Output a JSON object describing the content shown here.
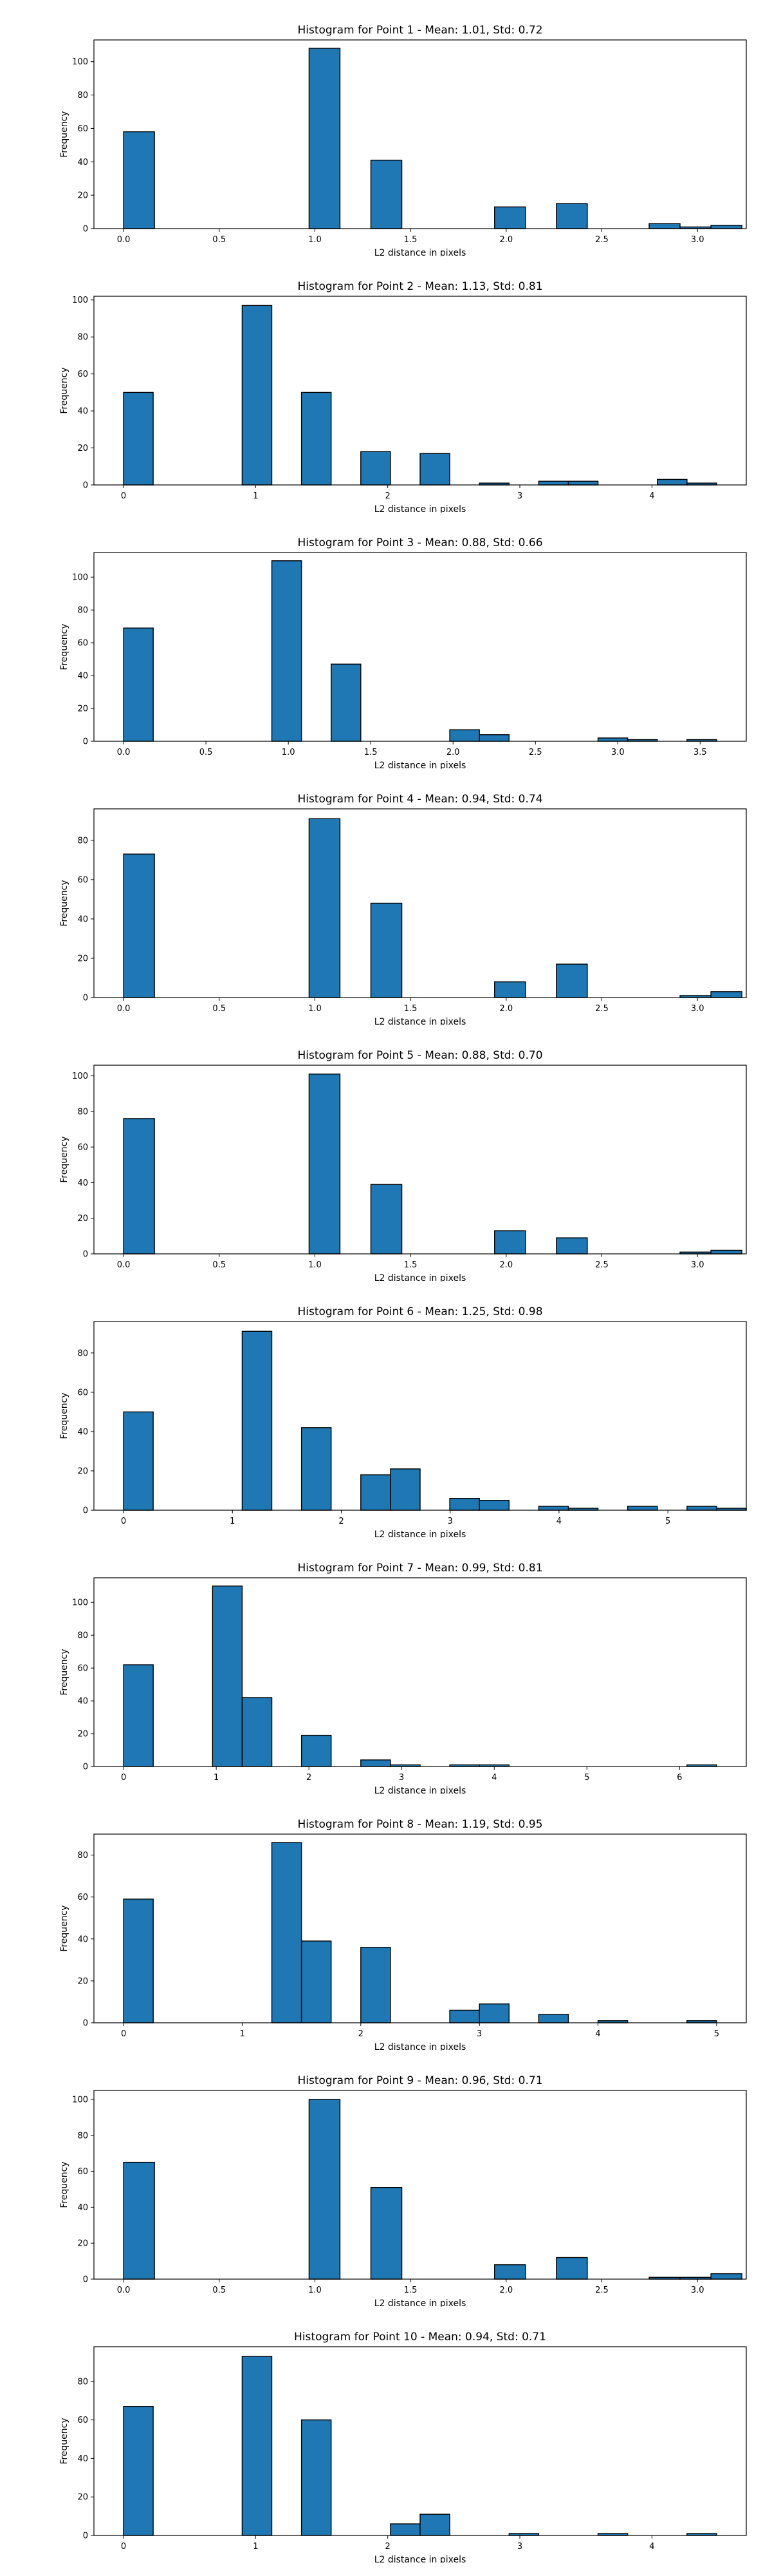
{
  "chart_data": [
    {
      "type": "bar",
      "title": "Histogram for Point 1 - Mean: 1.01, Std: 0.72",
      "xlabel": "L2 distance in pixels",
      "ylabel": "Frequency",
      "xlim": [
        -0.155,
        3.255
      ],
      "ylim": [
        0,
        113
      ],
      "xticks": [
        0.0,
        0.5,
        1.0,
        1.5,
        2.0,
        2.5,
        3.0
      ],
      "xtick_labels": [
        "0.0",
        "0.5",
        "1.0",
        "1.5",
        "2.0",
        "2.5",
        "3.0"
      ],
      "yticks": [
        0,
        20,
        40,
        60,
        80,
        100
      ],
      "bin_start": 0.0,
      "bin_width": 0.1616,
      "values": [
        58,
        0,
        0,
        0,
        0,
        0,
        108,
        0,
        41,
        0,
        0,
        0,
        13,
        0,
        15,
        0,
        0,
        3,
        1,
        2
      ]
    },
    {
      "type": "bar",
      "title": "Histogram for Point 2 - Mean: 1.13, Std: 0.81",
      "xlabel": "L2 distance in pixels",
      "ylabel": "Frequency",
      "xlim": [
        -0.224,
        4.714
      ],
      "ylim": [
        0,
        102
      ],
      "xticks": [
        0,
        1,
        2,
        3,
        4
      ],
      "xtick_labels": [
        "0",
        "1",
        "2",
        "3",
        "4"
      ],
      "yticks": [
        0,
        20,
        40,
        60,
        80,
        100
      ],
      "bin_start": 0.0,
      "bin_width": 0.2245,
      "values": [
        50,
        0,
        0,
        0,
        97,
        0,
        50,
        0,
        18,
        0,
        17,
        0,
        1,
        0,
        2,
        2,
        0,
        0,
        3,
        1
      ]
    },
    {
      "type": "bar",
      "title": "Histogram for Point 3 - Mean: 0.88, Std: 0.66",
      "xlabel": "L2 distance in pixels",
      "ylabel": "Frequency",
      "xlim": [
        -0.18,
        3.78
      ],
      "ylim": [
        0,
        115
      ],
      "xticks": [
        0.0,
        0.5,
        1.0,
        1.5,
        2.0,
        2.5,
        3.0,
        3.5
      ],
      "xtick_labels": [
        "0.0",
        "0.5",
        "1.0",
        "1.5",
        "2.0",
        "2.5",
        "3.0",
        "3.5"
      ],
      "yticks": [
        0,
        20,
        40,
        60,
        80,
        100
      ],
      "bin_start": 0.0,
      "bin_width": 0.18,
      "values": [
        69,
        0,
        0,
        0,
        0,
        110,
        0,
        47,
        0,
        0,
        0,
        7,
        4,
        0,
        0,
        0,
        2,
        1,
        0,
        1
      ]
    },
    {
      "type": "bar",
      "title": "Histogram for Point 4 - Mean: 0.94, Std: 0.74",
      "xlabel": "L2 distance in pixels",
      "ylabel": "Frequency",
      "xlim": [
        -0.155,
        3.255
      ],
      "ylim": [
        0,
        96
      ],
      "xticks": [
        0.0,
        0.5,
        1.0,
        1.5,
        2.0,
        2.5,
        3.0
      ],
      "xtick_labels": [
        "0.0",
        "0.5",
        "1.0",
        "1.5",
        "2.0",
        "2.5",
        "3.0"
      ],
      "yticks": [
        0,
        20,
        40,
        60,
        80
      ],
      "bin_start": 0.0,
      "bin_width": 0.1616,
      "values": [
        73,
        0,
        0,
        0,
        0,
        0,
        91,
        0,
        48,
        0,
        0,
        0,
        8,
        0,
        17,
        0,
        0,
        0,
        1,
        3
      ]
    },
    {
      "type": "bar",
      "title": "Histogram for Point 5 - Mean: 0.88, Std: 0.70",
      "xlabel": "L2 distance in pixels",
      "ylabel": "Frequency",
      "xlim": [
        -0.155,
        3.255
      ],
      "ylim": [
        0,
        106
      ],
      "xticks": [
        0.0,
        0.5,
        1.0,
        1.5,
        2.0,
        2.5,
        3.0
      ],
      "xtick_labels": [
        "0.0",
        "0.5",
        "1.0",
        "1.5",
        "2.0",
        "2.5",
        "3.0"
      ],
      "yticks": [
        0,
        20,
        40,
        60,
        80,
        100
      ],
      "bin_start": 0.0,
      "bin_width": 0.1616,
      "values": [
        76,
        0,
        0,
        0,
        0,
        0,
        101,
        0,
        39,
        0,
        0,
        0,
        13,
        0,
        9,
        0,
        0,
        0,
        1,
        2
      ]
    },
    {
      "type": "bar",
      "title": "Histogram for Point 6 - Mean: 1.25, Std: 0.98",
      "xlabel": "L2 distance in pixels",
      "ylabel": "Frequency",
      "xlim": [
        -0.272,
        5.72
      ],
      "ylim": [
        0,
        96
      ],
      "xticks": [
        0,
        1,
        2,
        3,
        4,
        5
      ],
      "xtick_labels": [
        "0",
        "1",
        "2",
        "3",
        "4",
        "5"
      ],
      "yticks": [
        0,
        20,
        40,
        60,
        80
      ],
      "bin_start": 0.0,
      "bin_width": 0.2724,
      "values": [
        50,
        0,
        0,
        0,
        91,
        0,
        42,
        0,
        18,
        21,
        0,
        6,
        5,
        0,
        2,
        1,
        0,
        2,
        0,
        2,
        1
      ]
    },
    {
      "type": "bar",
      "title": "Histogram for Point 7 - Mean: 0.99, Std: 0.81",
      "xlabel": "L2 distance in pixels",
      "ylabel": "Frequency",
      "xlim": [
        -0.32,
        6.72
      ],
      "ylim": [
        0,
        115
      ],
      "xticks": [
        0,
        1,
        2,
        3,
        4,
        5,
        6
      ],
      "xtick_labels": [
        "0",
        "1",
        "2",
        "3",
        "4",
        "5",
        "6"
      ],
      "yticks": [
        0,
        20,
        40,
        60,
        80,
        100
      ],
      "bin_start": 0.0,
      "bin_width": 0.32,
      "values": [
        62,
        0,
        0,
        110,
        42,
        0,
        19,
        0,
        4,
        1,
        0,
        1,
        1,
        0,
        0,
        0,
        0,
        0,
        0,
        1
      ]
    },
    {
      "type": "bar",
      "title": "Histogram for Point 8 - Mean: 1.19, Std: 0.95",
      "xlabel": "L2 distance in pixels",
      "ylabel": "Frequency",
      "xlim": [
        -0.25,
        5.25
      ],
      "ylim": [
        0,
        90
      ],
      "xticks": [
        0,
        1,
        2,
        3,
        4,
        5
      ],
      "xtick_labels": [
        "0",
        "1",
        "2",
        "3",
        "4",
        "5"
      ],
      "yticks": [
        0,
        20,
        40,
        60,
        80
      ],
      "bin_start": 0.0,
      "bin_width": 0.25,
      "values": [
        59,
        0,
        0,
        0,
        0,
        86,
        39,
        0,
        36,
        0,
        0,
        6,
        9,
        0,
        4,
        0,
        1,
        0,
        0,
        1
      ]
    },
    {
      "type": "bar",
      "title": "Histogram for Point 9 - Mean: 0.96, Std: 0.71",
      "xlabel": "L2 distance in pixels",
      "ylabel": "Frequency",
      "xlim": [
        -0.155,
        3.255
      ],
      "ylim": [
        0,
        105
      ],
      "xticks": [
        0.0,
        0.5,
        1.0,
        1.5,
        2.0,
        2.5,
        3.0
      ],
      "xtick_labels": [
        "0.0",
        "0.5",
        "1.0",
        "1.5",
        "2.0",
        "2.5",
        "3.0"
      ],
      "yticks": [
        0,
        20,
        40,
        60,
        80,
        100
      ],
      "bin_start": 0.0,
      "bin_width": 0.1616,
      "values": [
        65,
        0,
        0,
        0,
        0,
        0,
        100,
        0,
        51,
        0,
        0,
        0,
        8,
        0,
        12,
        0,
        0,
        1,
        1,
        3
      ]
    },
    {
      "type": "bar",
      "title": "Histogram for Point 10 - Mean: 0.94, Std: 0.71",
      "xlabel": "L2 distance in pixels",
      "ylabel": "Frequency",
      "xlim": [
        -0.224,
        4.714
      ],
      "ylim": [
        0,
        98
      ],
      "xticks": [
        0,
        1,
        2,
        3,
        4
      ],
      "xtick_labels": [
        "0",
        "1",
        "2",
        "3",
        "4"
      ],
      "yticks": [
        0,
        20,
        40,
        60,
        80
      ],
      "bin_start": 0.0,
      "bin_width": 0.2245,
      "values": [
        67,
        0,
        0,
        0,
        93,
        0,
        60,
        0,
        0,
        6,
        11,
        0,
        0,
        1,
        0,
        0,
        1,
        0,
        0,
        1
      ]
    }
  ],
  "colors": {
    "bar_fill": "#1f77b4",
    "bar_edge": "#000000",
    "axes": "#000000",
    "background": "#ffffff"
  }
}
